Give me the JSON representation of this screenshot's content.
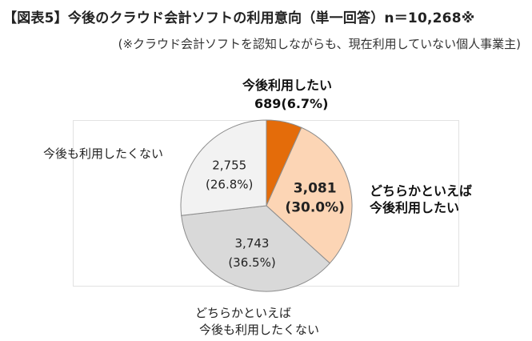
{
  "title": "【図表5】今後のクラウド会計ソフトの利用意向（単一回答）n＝10,268※",
  "subtitle": "(※クラウド会計ソフトを認知しながらも、現在利用していない個人事業主)",
  "colors": {
    "slice1": "#e46c0a",
    "slice2": "#fcd5b5",
    "slice3": "#d9d9d9",
    "slice4": "#f2f2f2",
    "stroke": "#8c8c8c"
  },
  "chart_data": {
    "type": "pie",
    "title": "【図表5】今後のクラウド会計ソフトの利用意向（単一回答）n＝10,268※",
    "total": 10268,
    "slices": [
      {
        "name": "今後利用したい",
        "value": 689,
        "percent": 6.7,
        "value_label": "689",
        "percent_label": "(6.7%)"
      },
      {
        "name": "どちらかといえば今後利用したい",
        "value": 3081,
        "percent": 30.0,
        "value_label": "3,081",
        "percent_label": "(30.0%)"
      },
      {
        "name": "どちらかといえば今後も利用したくない",
        "value": 3743,
        "percent": 36.5,
        "value_label": "3,743",
        "percent_label": "(36.5%)"
      },
      {
        "name": "今後も利用したくない",
        "value": 2755,
        "percent": 26.8,
        "value_label": "2,755",
        "percent_label": "(26.8%)"
      }
    ]
  },
  "labels": {
    "s1_line1": "今後利用したい",
    "s1_line2": "689(6.7%)",
    "s2_line1": "どちらかといえば",
    "s2_line2": "今後利用したい",
    "s3_line1": "どちらかといえば",
    "s3_line2": "今後も利用したくない",
    "s4_line1": "今後も利用したくない"
  }
}
